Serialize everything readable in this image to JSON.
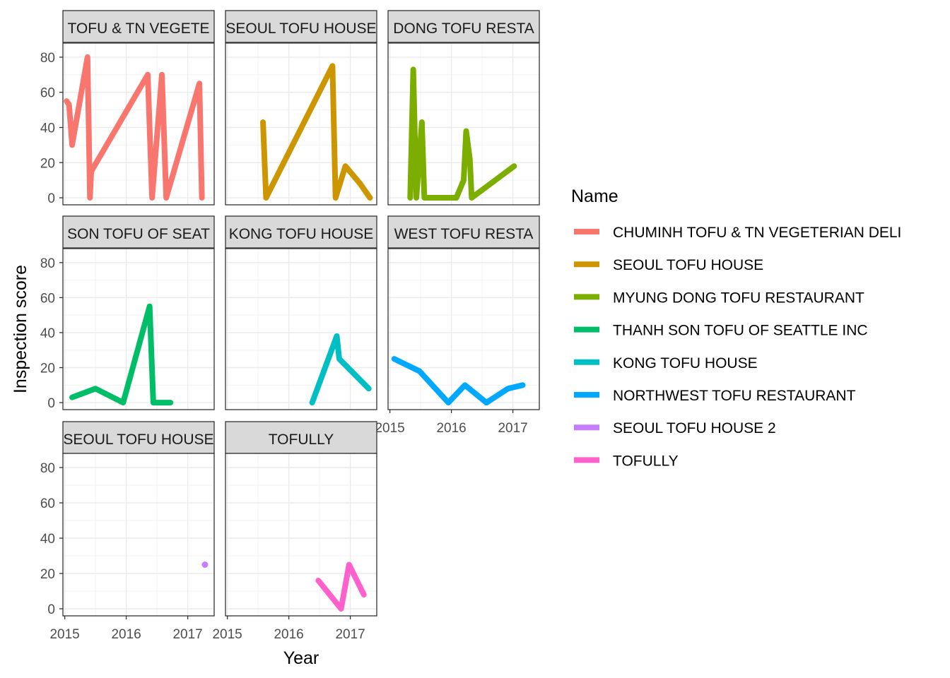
{
  "chart_data": {
    "type": "line",
    "facet_by": "Name",
    "xlabel": "Year",
    "ylabel": "Inspection score",
    "xlim": [
      2014.97,
      2017.43
    ],
    "ylim": [
      -4,
      88
    ],
    "x_ticks": [
      2015,
      2016,
      2017
    ],
    "x_tick_labels": [
      "2015",
      "2016",
      "2017"
    ],
    "y_ticks": [
      0,
      20,
      40,
      60,
      80
    ],
    "y_tick_labels": [
      "0",
      "20",
      "40",
      "60",
      "80"
    ],
    "grid": true,
    "legend": {
      "title": "Name",
      "position": "right"
    },
    "panels": [
      {
        "name": "CHUMINH TOFU & TN VEGETERIAN DELI",
        "strip_label": "TOFU & TN VEGETE",
        "color": "#F8766D",
        "points": [
          [
            2015.03,
            55
          ],
          [
            2015.07,
            53
          ],
          [
            2015.12,
            30
          ],
          [
            2015.37,
            80
          ],
          [
            2015.41,
            0
          ],
          [
            2015.43,
            15
          ],
          [
            2016.35,
            70
          ],
          [
            2016.42,
            0
          ],
          [
            2016.58,
            70
          ],
          [
            2016.65,
            0
          ],
          [
            2017.19,
            65
          ],
          [
            2017.23,
            0
          ]
        ]
      },
      {
        "name": "SEOUL TOFU HOUSE",
        "strip_label": "SEOUL TOFU HOUSE",
        "color": "#CD9600",
        "points": [
          [
            2015.58,
            43
          ],
          [
            2015.63,
            0
          ],
          [
            2016.71,
            75
          ],
          [
            2016.76,
            0
          ],
          [
            2016.92,
            18
          ],
          [
            2017.16,
            8
          ],
          [
            2017.32,
            0
          ]
        ]
      },
      {
        "name": "MYUNG DONG TOFU RESTAURANT",
        "strip_label": "DONG TOFU RESTA",
        "color": "#7CAE00",
        "points": [
          [
            2015.33,
            0
          ],
          [
            2015.38,
            73
          ],
          [
            2015.43,
            0
          ],
          [
            2015.52,
            43
          ],
          [
            2015.56,
            0
          ],
          [
            2016.08,
            0
          ],
          [
            2016.2,
            10
          ],
          [
            2016.24,
            38
          ],
          [
            2016.3,
            22
          ],
          [
            2016.33,
            0
          ],
          [
            2017.02,
            18
          ]
        ]
      },
      {
        "name": "THANH SON TOFU OF SEATTLE INC",
        "strip_label": "SON TOFU OF SEAT",
        "color": "#00BE67",
        "points": [
          [
            2015.12,
            3
          ],
          [
            2015.5,
            8
          ],
          [
            2015.95,
            0
          ],
          [
            2016.38,
            55
          ],
          [
            2016.44,
            0
          ],
          [
            2016.72,
            0
          ]
        ]
      },
      {
        "name": "KONG TOFU HOUSE",
        "strip_label": "KONG TOFU HOUSE",
        "color": "#00BFC4",
        "points": [
          [
            2016.38,
            0
          ],
          [
            2016.78,
            38
          ],
          [
            2016.82,
            25
          ],
          [
            2017.3,
            8
          ]
        ]
      },
      {
        "name": "NORTHWEST TOFU RESTAURANT",
        "strip_label": "WEST TOFU RESTA",
        "color": "#00A9FF",
        "points": [
          [
            2015.07,
            25
          ],
          [
            2015.48,
            18
          ],
          [
            2015.95,
            0
          ],
          [
            2016.22,
            10
          ],
          [
            2016.57,
            0
          ],
          [
            2016.92,
            8
          ],
          [
            2017.16,
            10
          ]
        ]
      },
      {
        "name": "SEOUL TOFU HOUSE 2",
        "strip_label": "SEOUL TOFU HOUSE",
        "color": "#C77CFF",
        "points": [
          [
            2017.28,
            25
          ]
        ]
      },
      {
        "name": "TOFULLY",
        "strip_label": "TOFULLY",
        "color": "#FF61CC",
        "points": [
          [
            2016.48,
            16
          ],
          [
            2016.85,
            0
          ],
          [
            2016.98,
            25
          ],
          [
            2017.22,
            8
          ]
        ]
      }
    ]
  }
}
